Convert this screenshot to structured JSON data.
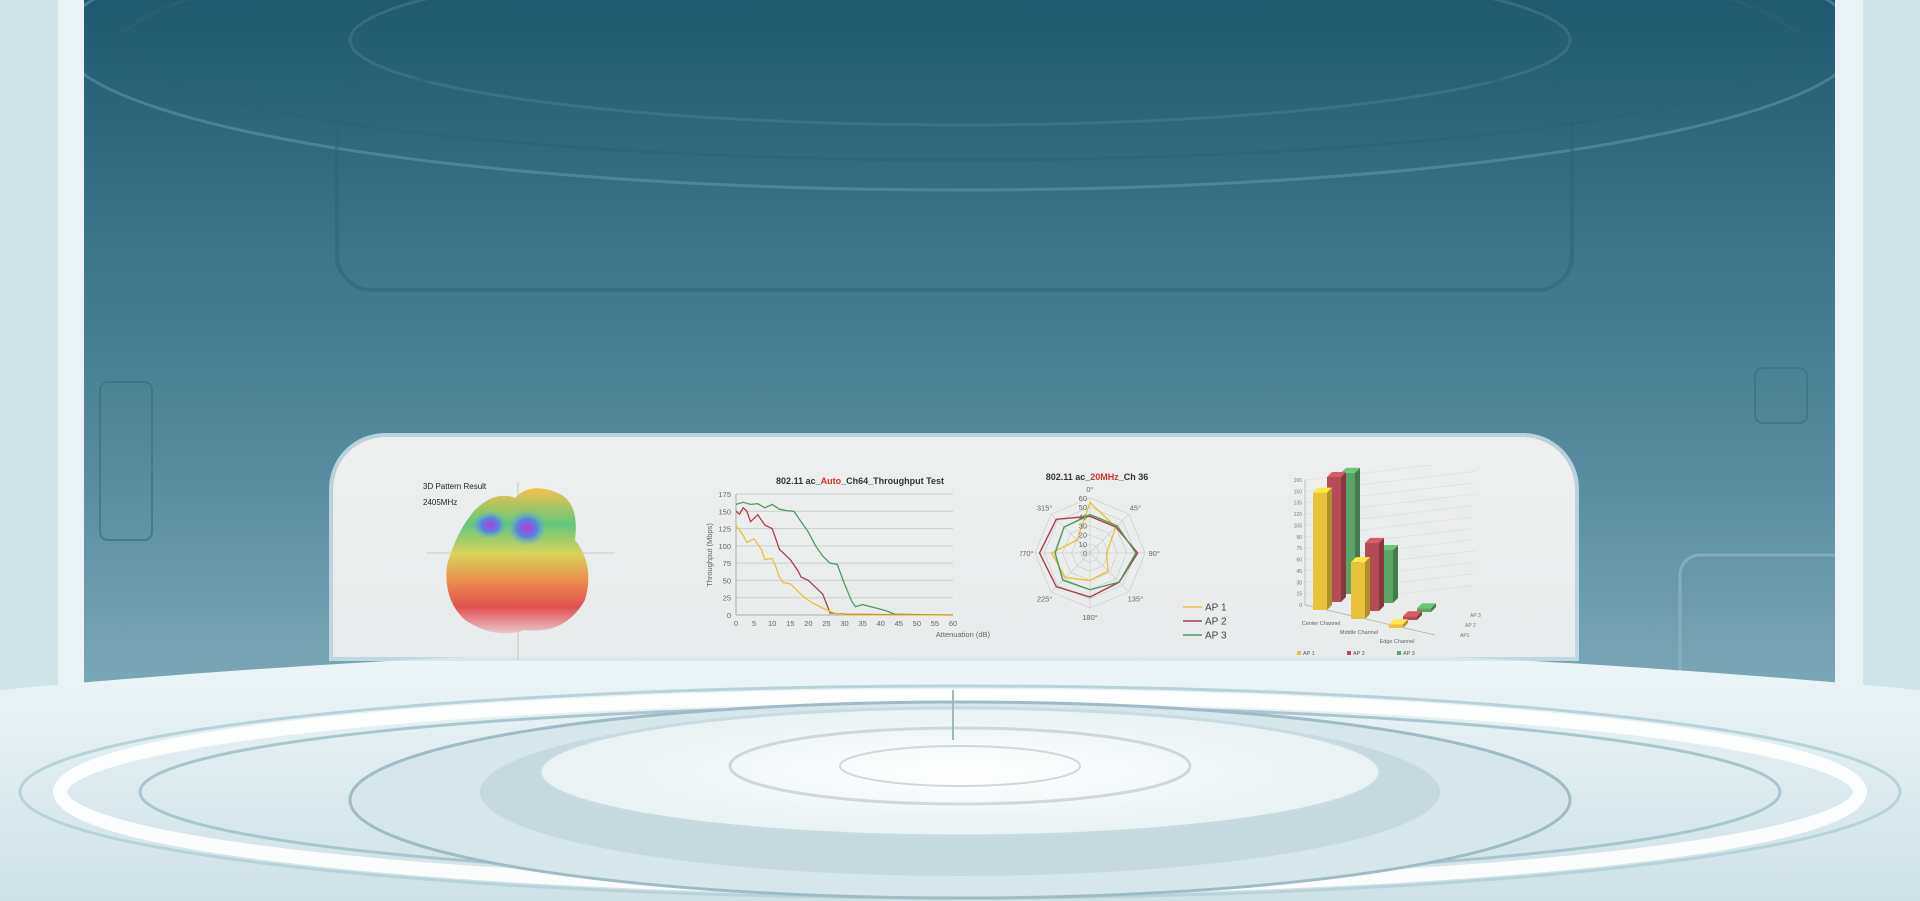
{
  "colors": {
    "sky_top": "#1f5a70",
    "sky_mid": "#5a90a3",
    "floor": "#e6f1f4",
    "panel": "#eceeee",
    "ap1": "#e8c23a",
    "ap2": "#a8404a",
    "ap3": "#4f9a5c",
    "highlight": "#d9302a"
  },
  "pattern3d": {
    "title": "3D Pattern Result",
    "frequency": "2405MHz"
  },
  "chart_data": [
    {
      "type": "line",
      "title_parts": [
        "802.11 ac_",
        "Auto",
        "_Ch64_Throughput Test"
      ],
      "xlabel": "Attenuation (dB)",
      "ylabel": "Throughput (Mbps)",
      "xlim": [
        0,
        60
      ],
      "ylim": [
        0,
        175
      ],
      "xticks": [
        0,
        5,
        10,
        15,
        20,
        25,
        30,
        35,
        40,
        45,
        50,
        55,
        60
      ],
      "yticks": [
        0,
        25,
        50,
        75,
        100,
        125,
        150,
        175
      ],
      "grid": true,
      "series": [
        {
          "color": "#4f9a5c",
          "x": [
            0,
            2,
            4,
            6,
            8,
            10,
            12,
            14,
            16,
            18,
            20,
            22,
            24,
            26,
            28,
            30,
            32,
            33,
            35,
            38,
            41,
            44,
            60
          ],
          "y": [
            160,
            163,
            160,
            161,
            155,
            160,
            153,
            151,
            150,
            135,
            120,
            100,
            85,
            75,
            73,
            45,
            20,
            12,
            15,
            11,
            7,
            1,
            0
          ]
        },
        {
          "color": "#a8404a",
          "x": [
            0,
            1,
            2,
            3,
            4,
            6,
            8,
            10,
            11,
            12,
            14,
            15,
            17,
            18,
            20,
            22,
            24,
            26,
            30,
            60
          ],
          "y": [
            150,
            146,
            155,
            150,
            135,
            145,
            130,
            125,
            110,
            95,
            85,
            80,
            65,
            55,
            50,
            40,
            30,
            3,
            1,
            0
          ]
        },
        {
          "color": "#e8c23a",
          "x": [
            0,
            2,
            3,
            5,
            7,
            8,
            10,
            11,
            12,
            13,
            15,
            17,
            19,
            21,
            24,
            27,
            30,
            60
          ],
          "y": [
            130,
            115,
            105,
            110,
            95,
            80,
            82,
            70,
            55,
            47,
            45,
            35,
            25,
            18,
            10,
            3,
            0,
            0
          ]
        }
      ]
    },
    {
      "type": "radar",
      "title_parts": [
        "802.11 ac_",
        "20MHz",
        "_Ch 36"
      ],
      "angles": [
        "0°",
        "45°",
        "90°",
        "135°",
        "180°",
        "225°",
        "270°",
        "315°"
      ],
      "rticks": [
        0,
        10,
        20,
        30,
        40,
        50,
        60
      ],
      "rlim": [
        0,
        60
      ],
      "legend": "bottom-right",
      "series": [
        {
          "name": "AP 1",
          "color": "#e8c23a",
          "values": [
            55,
            40,
            18,
            28,
            30,
            38,
            42,
            20
          ]
        },
        {
          "name": "AP 2",
          "color": "#a8404a",
          "values": [
            40,
            40,
            52,
            45,
            48,
            52,
            55,
            52
          ]
        },
        {
          "name": "AP 3",
          "color": "#4f9a5c",
          "values": [
            42,
            42,
            50,
            45,
            40,
            42,
            38,
            40
          ]
        }
      ]
    },
    {
      "type": "bar",
      "style": "3d",
      "categories": [
        "Center Channel",
        "Middle Channel",
        "Edge Channel"
      ],
      "depth_labels": [
        "AP1",
        "AP 2",
        "AP 3"
      ],
      "yticks": [
        0,
        15,
        30,
        45,
        60,
        75,
        90,
        105,
        120,
        135,
        150,
        165
      ],
      "ylim": [
        0,
        165
      ],
      "legend": "bottom",
      "series": [
        {
          "name": "AP 1",
          "color": "#e8c23a",
          "values": [
            155,
            75,
            5
          ]
        },
        {
          "name": "AP 2",
          "color": "#b44c55",
          "values": [
            165,
            90,
            5
          ]
        },
        {
          "name": "AP 3",
          "color": "#5aa565",
          "values": [
            160,
            70,
            5
          ]
        }
      ]
    }
  ]
}
